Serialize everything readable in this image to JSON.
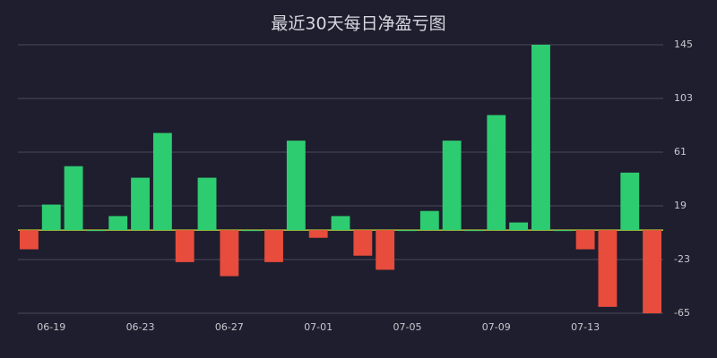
{
  "chart_data": {
    "type": "bar",
    "title": "最近30天每日净盈亏图",
    "categories": [
      null,
      "06-19",
      null,
      null,
      null,
      "06-23",
      null,
      null,
      null,
      "06-27",
      null,
      null,
      null,
      "07-01",
      null,
      null,
      null,
      "07-05",
      null,
      null,
      null,
      "07-09",
      null,
      null,
      null,
      "07-13",
      null,
      null,
      null
    ],
    "values": [
      -15,
      20,
      50,
      0,
      11,
      41,
      76,
      -25,
      41,
      -36,
      0,
      -25,
      70,
      -6,
      11,
      -20,
      -31,
      0,
      15,
      70,
      0,
      90,
      6,
      145,
      0,
      -15,
      -60,
      45,
      -65
    ],
    "positive_color": "#2ecc71",
    "negative_color": "#e74c3c",
    "ylim": [
      -65,
      145
    ],
    "yticks": [
      145,
      103,
      61,
      19,
      -23,
      -65
    ],
    "grid": true,
    "y_axis_side": "right"
  }
}
